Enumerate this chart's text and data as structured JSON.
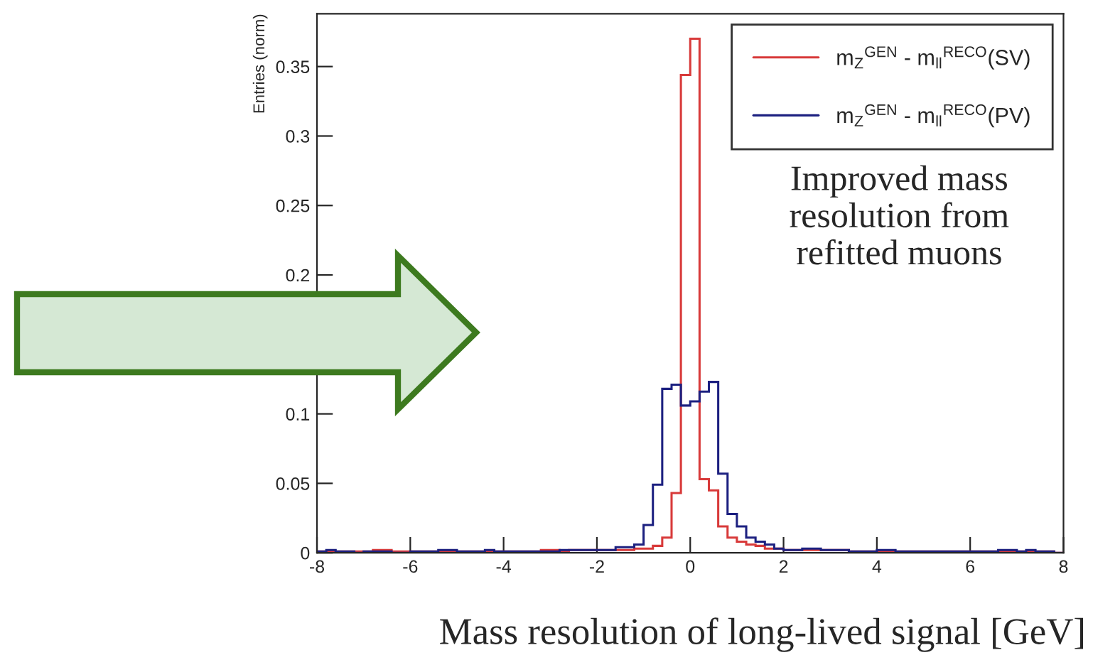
{
  "chart_data": {
    "type": "histogram",
    "xlabel": "Mass resolution of long-lived signal [GeV]",
    "ylabel": "Entries (norm)",
    "bins": [
      -8,
      -7.8,
      -7.6,
      -7.4,
      -7.2,
      -7,
      -6.8,
      -6.6,
      -6.4,
      -6.2,
      -6,
      -5.8,
      -5.6,
      -5.4,
      -5.2,
      -5,
      -4.8,
      -4.6,
      -4.4,
      -4.2,
      -4,
      -3.8,
      -3.6,
      -3.4,
      -3.2,
      -3,
      -2.8,
      -2.6,
      -2.4,
      -2.2,
      -2,
      -1.8,
      -1.6,
      -1.4,
      -1.2,
      -1,
      -0.8,
      -0.6,
      -0.4,
      -0.2,
      0,
      0.2,
      0.4,
      0.6,
      0.8,
      1,
      1.2,
      1.4,
      1.6,
      1.8,
      2,
      2.2,
      2.4,
      2.6,
      2.8,
      3,
      3.2,
      3.4,
      3.6,
      3.8,
      4,
      4.2,
      4.4,
      4.6,
      4.8,
      5,
      5.2,
      5.4,
      5.6,
      5.8,
      6,
      6.2,
      6.4,
      6.6,
      6.8,
      7,
      7.2,
      7.4,
      7.6,
      7.8,
      8
    ],
    "series": [
      {
        "name": "m$_{Z}$$^{GEN}$ - m$_{ll}$$^{RECO}$(SV)",
        "color": "#d83a3a",
        "values": [
          0.001,
          0.001,
          0.001,
          0.001,
          0.001,
          0.001,
          0.002,
          0.002,
          0.001,
          0.001,
          0.001,
          0.001,
          0.001,
          0.001,
          0.001,
          0.001,
          0.001,
          0.001,
          0.001,
          0.001,
          0.001,
          0.001,
          0.001,
          0.001,
          0.002,
          0.002,
          0.001,
          0.002,
          0.002,
          0.002,
          0.002,
          0.002,
          0.002,
          0.002,
          0.003,
          0.003,
          0.005,
          0.011,
          0.043,
          0.344,
          0.37,
          0.053,
          0.045,
          0.019,
          0.011,
          0.008,
          0.006,
          0.005,
          0.003,
          0.003,
          0.002,
          0.002,
          0.002,
          0.002,
          0.002,
          0.002,
          0.002,
          0.001,
          0.001,
          0.001,
          0.001,
          0.001,
          0.001,
          0.001,
          0.001,
          0.001,
          0.001,
          0.001,
          0.001,
          0.001,
          0.001,
          0.001,
          0.001,
          0.001,
          0.001,
          0.001,
          0.001,
          0.001,
          0.001,
          0
        ]
      },
      {
        "name": "m$_{Z}$$^{GEN}$ - m$_{ll}$$^{RECO}$(PV)",
        "color": "#1c2080",
        "values": [
          0.001,
          0.002,
          0.001,
          0.001,
          0,
          0.001,
          0.001,
          0.001,
          0,
          0,
          0.001,
          0.001,
          0.001,
          0.002,
          0.002,
          0.001,
          0.001,
          0.001,
          0.002,
          0.001,
          0.001,
          0.001,
          0.001,
          0.001,
          0.001,
          0.001,
          0.002,
          0.002,
          0.002,
          0.002,
          0.002,
          0.002,
          0.004,
          0.004,
          0.006,
          0.02,
          0.049,
          0.118,
          0.121,
          0.106,
          0.109,
          0.116,
          0.123,
          0.057,
          0.028,
          0.019,
          0.011,
          0.008,
          0.006,
          0.003,
          0.002,
          0.002,
          0.003,
          0.003,
          0.002,
          0.002,
          0.002,
          0.001,
          0.001,
          0.001,
          0.002,
          0.002,
          0.001,
          0.001,
          0.001,
          0.001,
          0.001,
          0.001,
          0.001,
          0.001,
          0.001,
          0.001,
          0.001,
          0.002,
          0.002,
          0.001,
          0.002,
          0.001,
          0.001,
          0
        ]
      }
    ],
    "xlim": [
      -8,
      8
    ],
    "xticks": [
      -8,
      -6,
      -4,
      -2,
      0,
      2,
      4,
      6,
      8
    ],
    "ylim": [
      0,
      0.388
    ],
    "yticks": [
      0,
      0.05,
      0.1,
      {
        "value": 0.15,
        "label": null
      },
      0.2,
      0.25,
      0.3,
      0.35
    ],
    "legend": "top right",
    "grid": false,
    "annotations": [
      "Improved mass\nresolution from\nrefitted muons"
    ]
  }
}
